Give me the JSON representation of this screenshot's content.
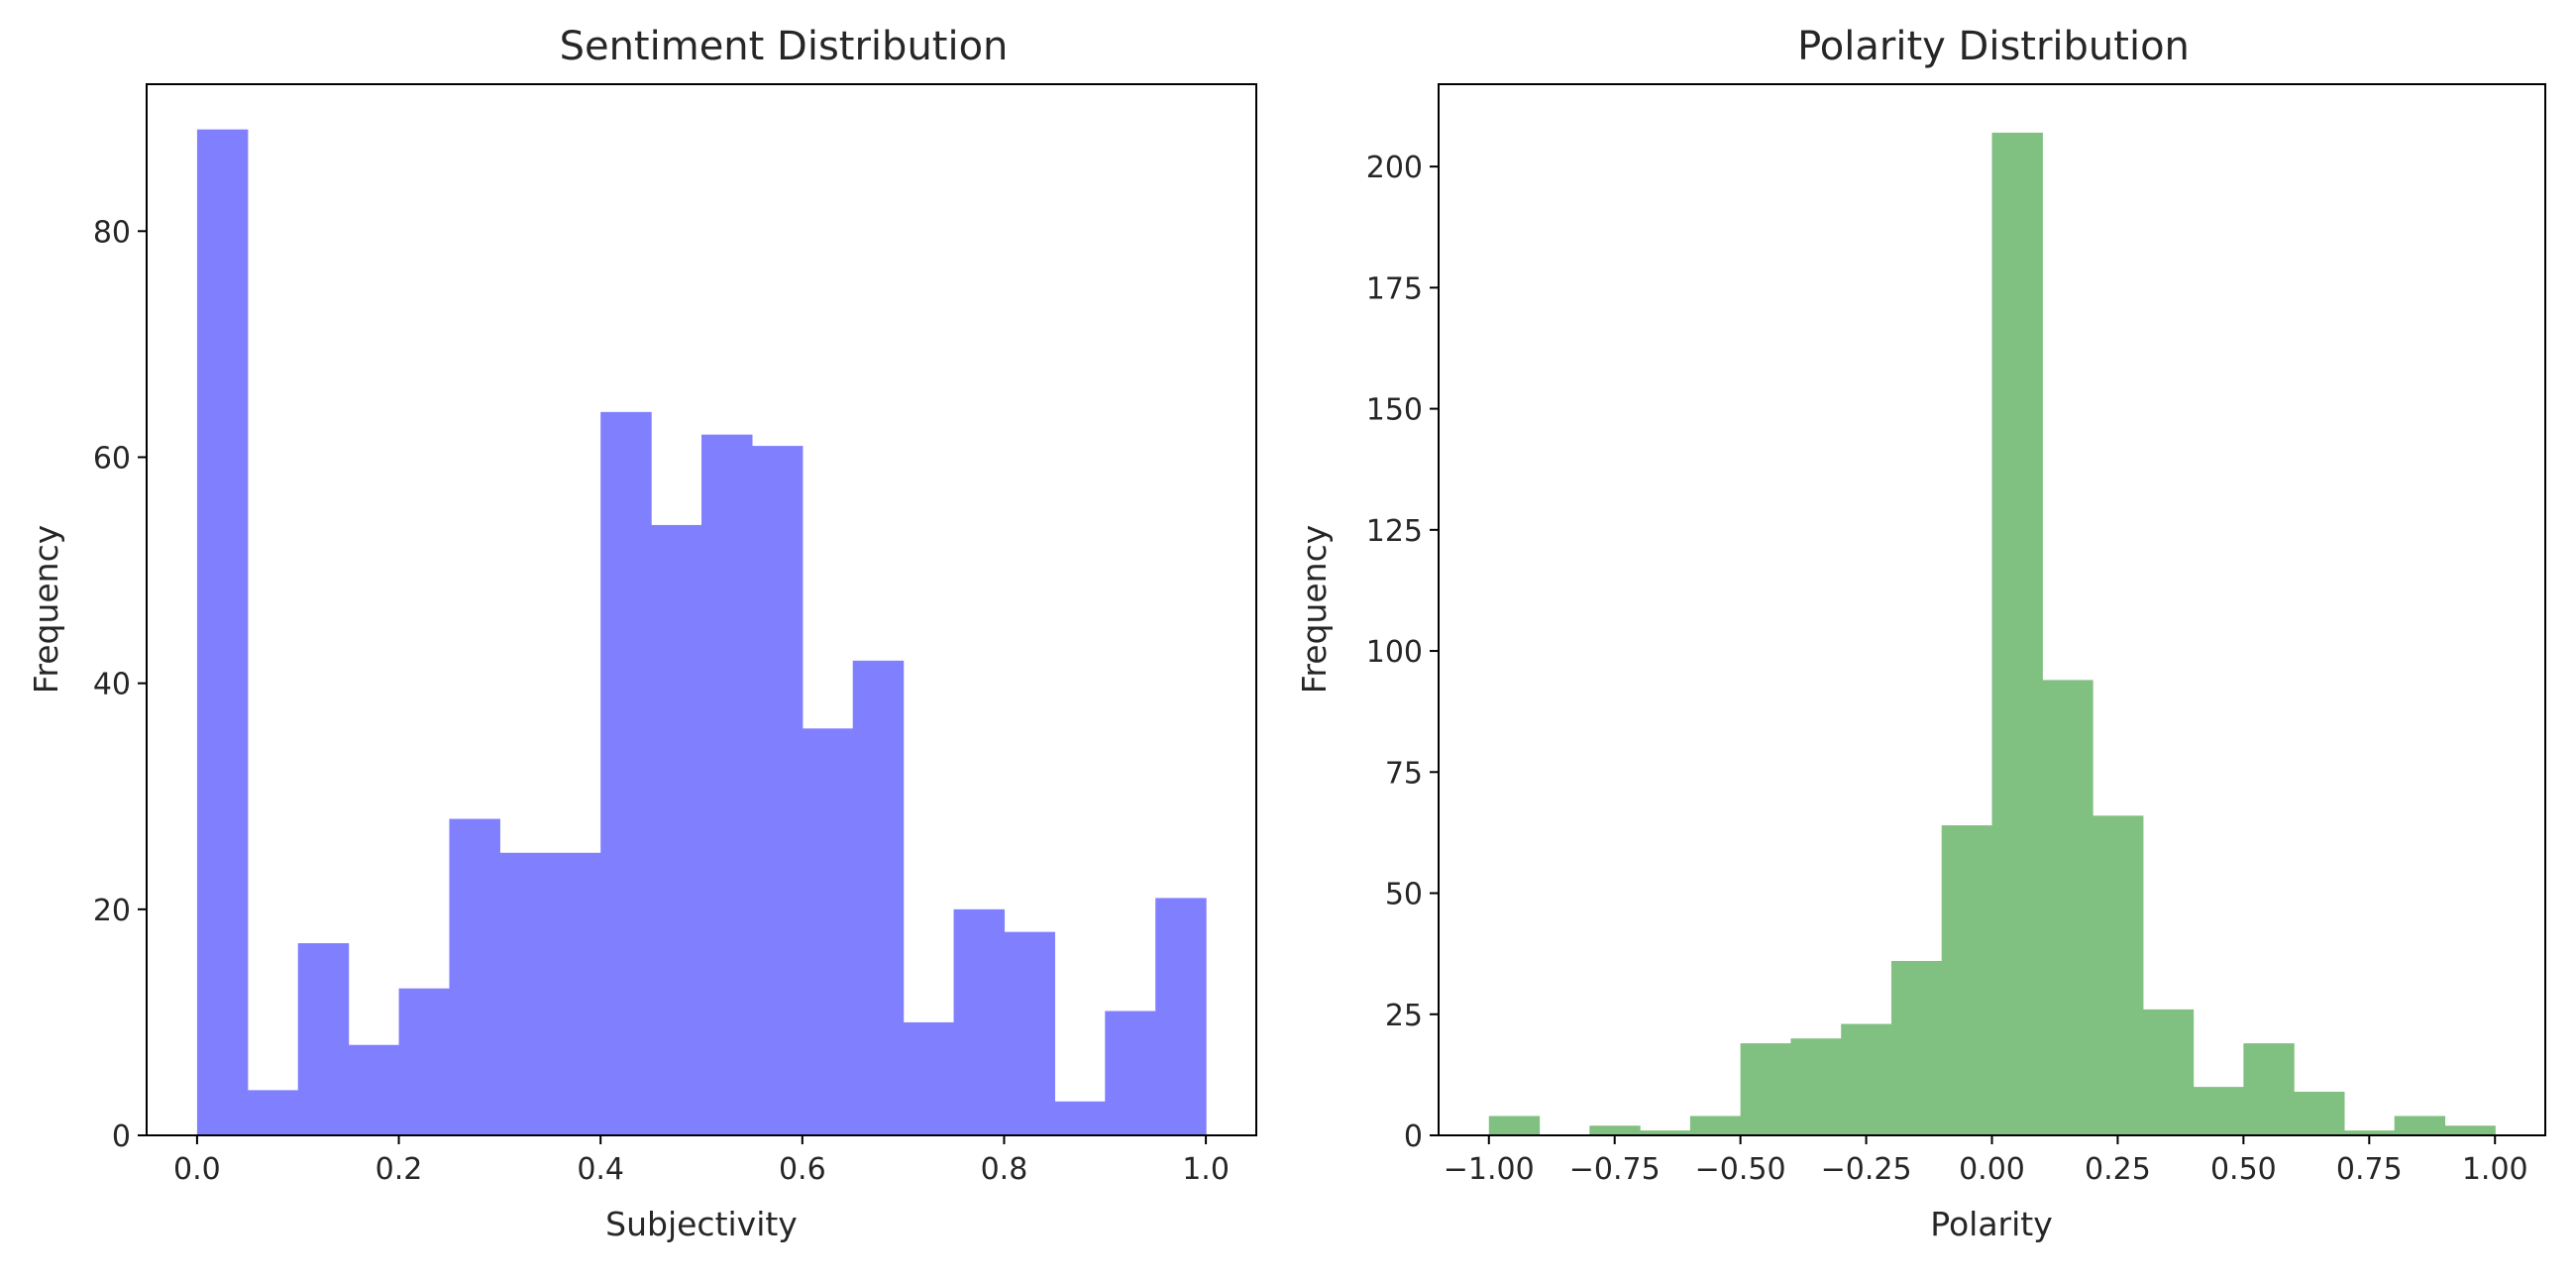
{
  "chart_data": [
    {
      "type": "histogram",
      "title": "Sentiment Distribution",
      "xlabel": "Subjectivity",
      "ylabel": "Frequency",
      "color": "#8080ff",
      "bin_start": 0.0,
      "bin_width": 0.05,
      "values": [
        89,
        4,
        17,
        8,
        13,
        28,
        25,
        25,
        64,
        54,
        62,
        61,
        36,
        42,
        10,
        20,
        18,
        3,
        11,
        21
      ],
      "xlim": [
        -0.05,
        1.05
      ],
      "ylim": [
        0,
        93
      ],
      "xticks": [
        0.0,
        0.2,
        0.4,
        0.6,
        0.8,
        1.0
      ],
      "xtick_labels": [
        "0.0",
        "0.2",
        "0.4",
        "0.6",
        "0.8",
        "1.0"
      ],
      "yticks": [
        0,
        20,
        40,
        60,
        80
      ],
      "ytick_labels": [
        "0",
        "20",
        "40",
        "60",
        "80"
      ]
    },
    {
      "type": "histogram",
      "title": "Polarity Distribution",
      "xlabel": "Polarity",
      "ylabel": "Frequency",
      "color": "#80c080",
      "bin_start": -1.0,
      "bin_width": 0.1,
      "values": [
        4,
        0,
        2,
        1,
        4,
        19,
        20,
        23,
        36,
        64,
        207,
        94,
        66,
        26,
        10,
        19,
        9,
        1,
        4,
        2
      ],
      "xlim": [
        -1.1,
        1.1
      ],
      "ylim": [
        0,
        217
      ],
      "xticks": [
        -1.0,
        -0.75,
        -0.5,
        -0.25,
        0.0,
        0.25,
        0.5,
        0.75,
        1.0
      ],
      "xtick_labels": [
        "−1.00",
        "−0.75",
        "−0.50",
        "−0.25",
        "0.00",
        "0.25",
        "0.50",
        "0.75",
        "1.00"
      ],
      "yticks": [
        0,
        25,
        50,
        75,
        100,
        125,
        150,
        175,
        200
      ],
      "ytick_labels": [
        "0",
        "25",
        "50",
        "75",
        "100",
        "125",
        "150",
        "175",
        "200"
      ]
    }
  ]
}
